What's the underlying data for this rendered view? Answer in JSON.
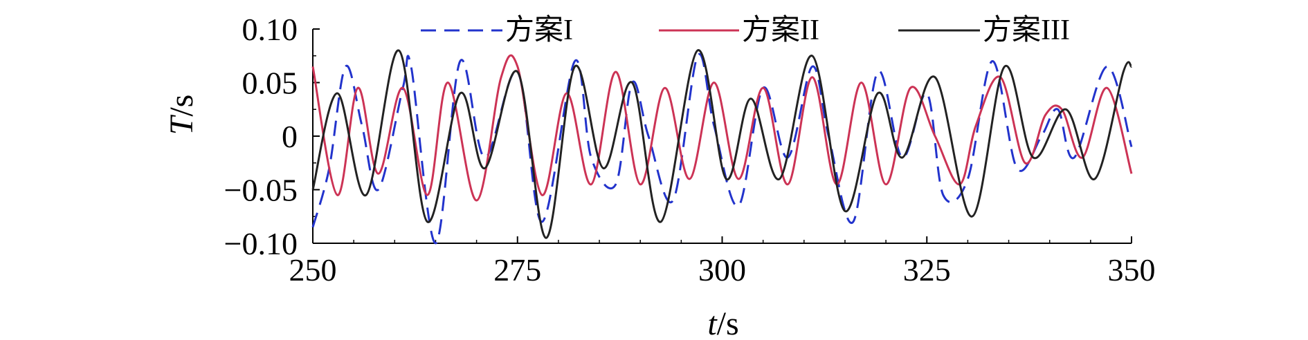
{
  "chart_data": {
    "type": "line",
    "title": "",
    "xlabel": {
      "var": "t",
      "unit": "/s"
    },
    "ylabel": {
      "var": "T",
      "unit": "/s"
    },
    "xlim": [
      250,
      350
    ],
    "ylim": [
      -0.1,
      0.1
    ],
    "x_ticks": [
      "250",
      "275",
      "300",
      "325",
      "350"
    ],
    "x_tick_values": [
      250,
      275,
      300,
      325,
      350
    ],
    "y_ticks": [
      "0.10",
      "0.05",
      "0",
      "−0.05",
      "−0.10"
    ],
    "y_tick_values": [
      0.1,
      0.05,
      0,
      -0.05,
      -0.1
    ],
    "grid": false,
    "legend_position": "top",
    "series": [
      {
        "name": "方案I",
        "color": "#2233cc",
        "dash": "dashed",
        "x": [
          250,
          252,
          254,
          256,
          258,
          261,
          262,
          265,
          268,
          271,
          275,
          278,
          282,
          284,
          287,
          289,
          291,
          294,
          297,
          299,
          302,
          305,
          308,
          311,
          313,
          316,
          319,
          322,
          325,
          327,
          330,
          333,
          336,
          339,
          341,
          343,
          347,
          350
        ],
        "y": [
          -0.085,
          -0.03,
          0.065,
          0.01,
          -0.05,
          0.045,
          0.065,
          -0.1,
          0.07,
          -0.02,
          0.06,
          -0.08,
          0.07,
          -0.02,
          -0.045,
          0.05,
          0.0,
          -0.06,
          0.075,
          0.01,
          -0.065,
          0.045,
          -0.02,
          0.065,
          0.0,
          -0.08,
          0.06,
          -0.02,
          0.04,
          -0.055,
          -0.04,
          0.07,
          -0.03,
          0.0,
          0.025,
          -0.02,
          0.065,
          -0.01
        ]
      },
      {
        "name": "方案II",
        "color": "#cc3355",
        "dash": "solid",
        "x": [
          250,
          253,
          255.5,
          258,
          261,
          264,
          266.5,
          270,
          273,
          275,
          278,
          281,
          284,
          287,
          290,
          293,
          296,
          299,
          302,
          305,
          308,
          311,
          314,
          317,
          320,
          323,
          326,
          329,
          331,
          334,
          337,
          339.5,
          341.5,
          344,
          347,
          350
        ],
        "y": [
          0.065,
          -0.055,
          0.045,
          -0.035,
          0.045,
          -0.055,
          0.05,
          -0.06,
          0.055,
          0.065,
          -0.055,
          0.04,
          -0.045,
          0.06,
          -0.045,
          0.045,
          -0.04,
          0.05,
          -0.04,
          0.045,
          -0.045,
          0.055,
          -0.045,
          0.05,
          -0.045,
          0.045,
          0.0,
          -0.045,
          0.01,
          0.055,
          -0.025,
          0.02,
          0.025,
          -0.02,
          0.045,
          -0.035
        ]
      },
      {
        "name": "方案III",
        "color": "#222222",
        "dash": "solid",
        "x": [
          250,
          253,
          256.5,
          260.5,
          264,
          268,
          271,
          275,
          278.5,
          282,
          285.5,
          289,
          292.5,
          297,
          300.5,
          303.5,
          307,
          311,
          315,
          319,
          322,
          326,
          330.5,
          334.5,
          338,
          342,
          345.5,
          349,
          350
        ],
        "y": [
          -0.05,
          0.04,
          -0.055,
          0.08,
          -0.08,
          0.04,
          -0.03,
          0.06,
          -0.095,
          0.065,
          -0.03,
          0.05,
          -0.08,
          0.08,
          -0.04,
          0.035,
          -0.04,
          0.075,
          -0.07,
          0.04,
          -0.02,
          0.055,
          -0.075,
          0.065,
          -0.02,
          0.025,
          -0.04,
          0.06,
          0.065
        ]
      }
    ]
  }
}
